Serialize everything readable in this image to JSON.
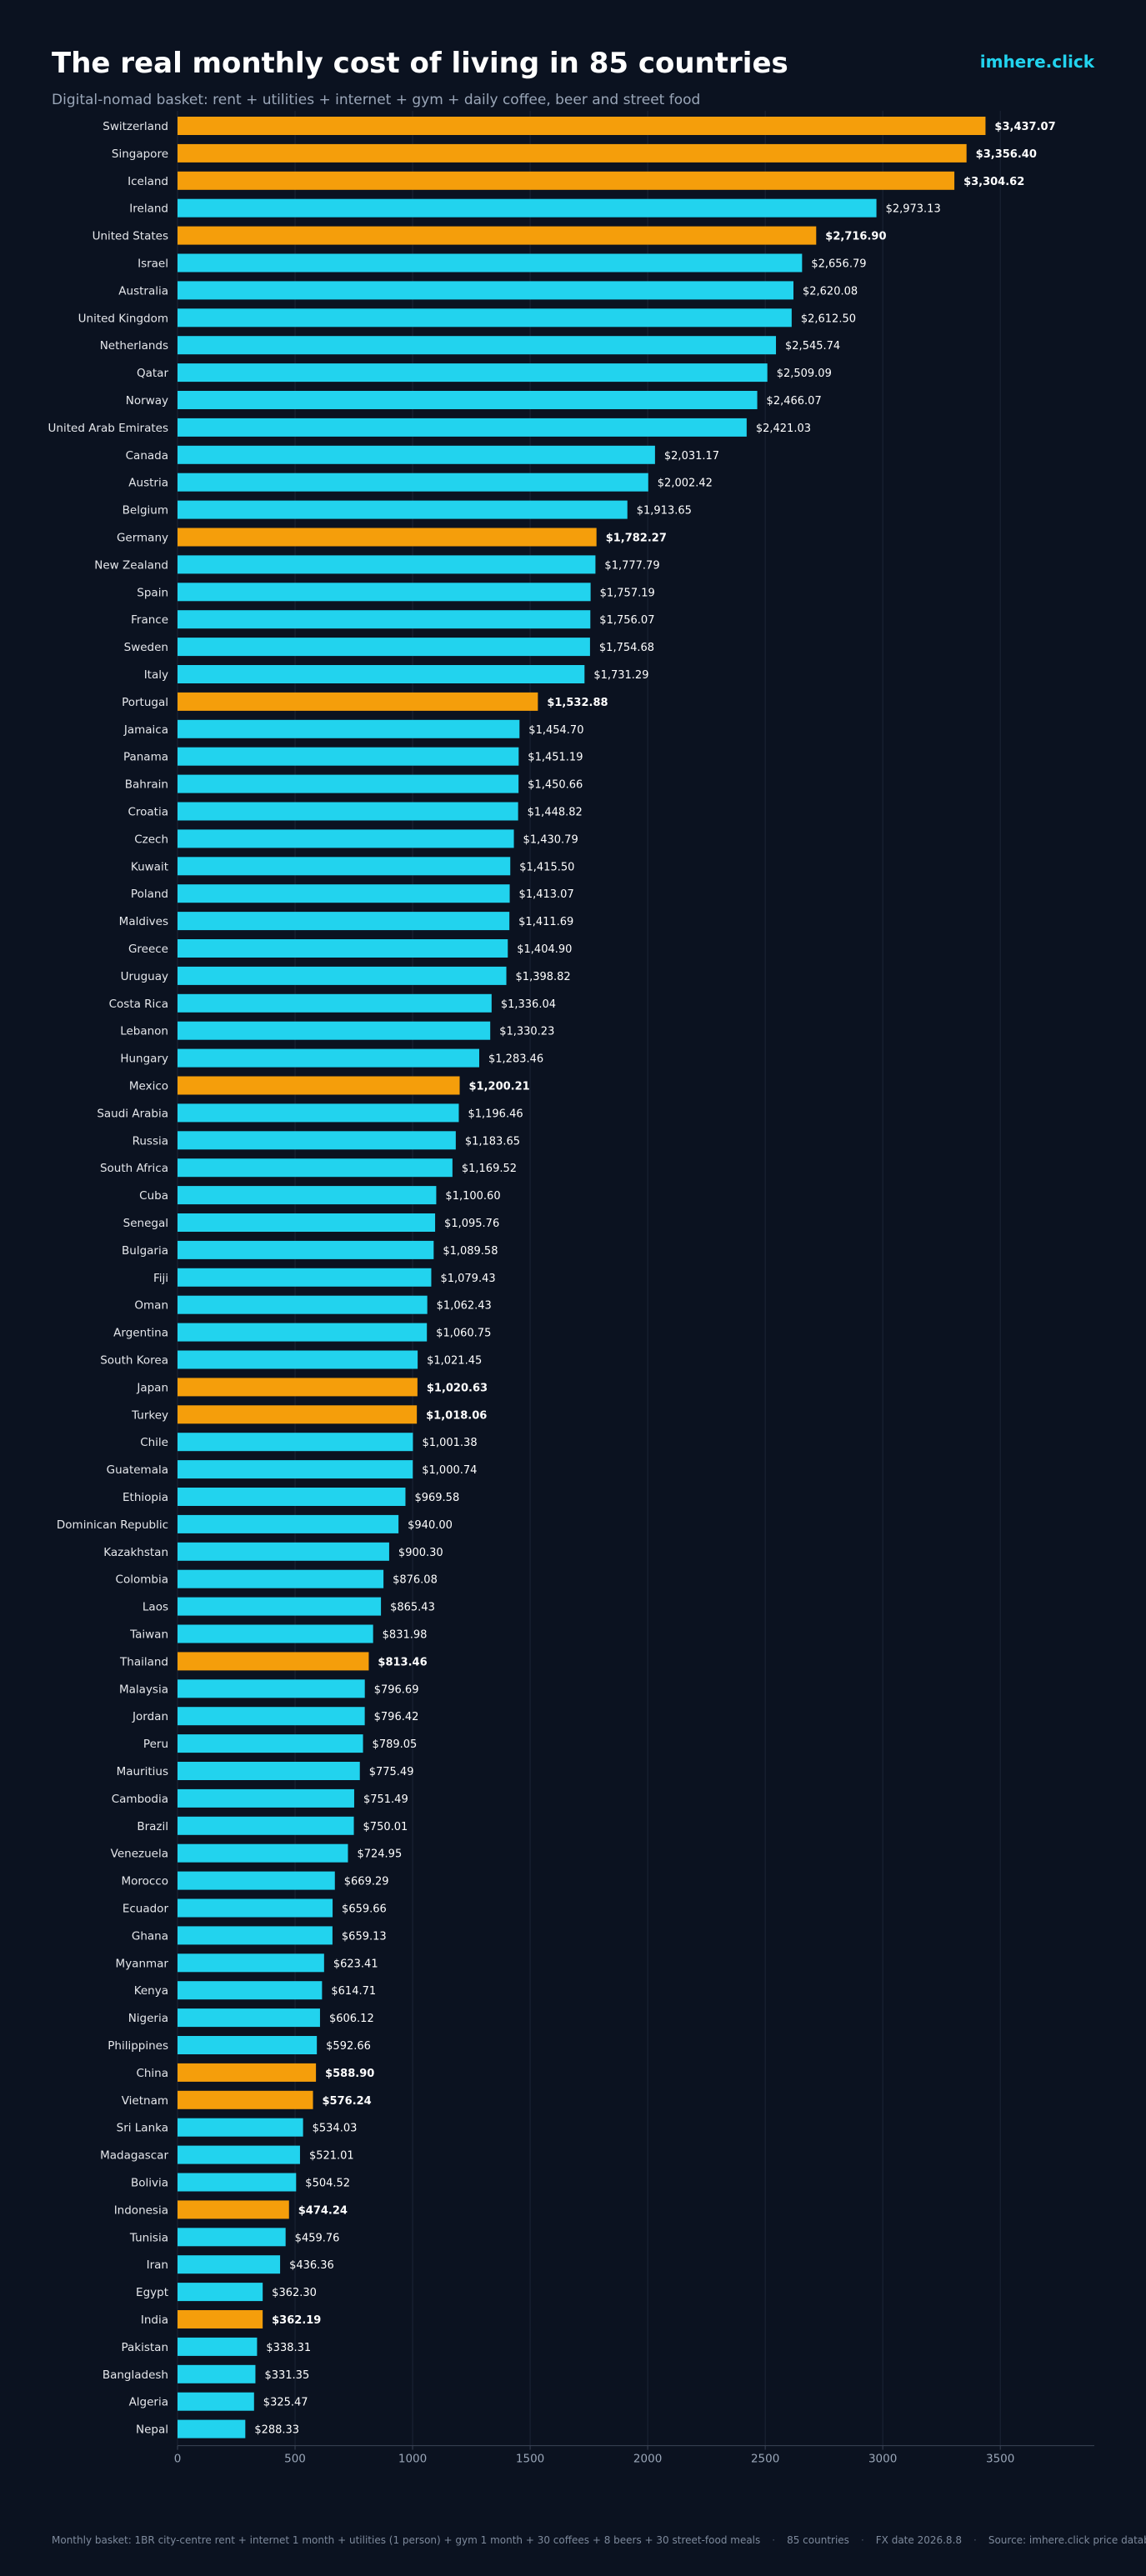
{
  "header": {
    "title": "The real monthly cost of living in 85 countries",
    "subtitle": "Digital-nomad basket: rent + utilities + internet + gym + daily coffee, beer and street food",
    "brand": "imhere.click"
  },
  "footer": {
    "basket": "Monthly basket: 1BR city-centre rent + internet 1 month + utilities (1 person) + gym 1 month + 30 coffees + 8 beers + 30 street-food meals",
    "count": "85 countries",
    "fx": "FX date 2026.8.8",
    "source": "Source: imhere.click price database"
  },
  "colors": {
    "background": "#0b1220",
    "default_bar": "#22d3ee",
    "highlight_bar": "#f59e0b",
    "label_text": "#e5e7eb",
    "grid": "#1c2536",
    "axis": "#3b4456"
  },
  "chart_data": {
    "type": "bar",
    "orientation": "horizontal",
    "currency_prefix": "$",
    "xlim": [
      0,
      3900
    ],
    "xticks": [
      0,
      500,
      1000,
      1500,
      2000,
      2500,
      3000,
      3500
    ],
    "grid": "vertical",
    "categories": [
      "Switzerland",
      "Singapore",
      "Iceland",
      "Ireland",
      "United States",
      "Israel",
      "Australia",
      "United Kingdom",
      "Netherlands",
      "Qatar",
      "Norway",
      "United Arab Emirates",
      "Canada",
      "Austria",
      "Belgium",
      "Germany",
      "New Zealand",
      "Spain",
      "France",
      "Sweden",
      "Italy",
      "Portugal",
      "Jamaica",
      "Panama",
      "Bahrain",
      "Croatia",
      "Czech",
      "Kuwait",
      "Poland",
      "Maldives",
      "Greece",
      "Uruguay",
      "Costa Rica",
      "Lebanon",
      "Hungary",
      "Mexico",
      "Saudi Arabia",
      "Russia",
      "South Africa",
      "Cuba",
      "Senegal",
      "Bulgaria",
      "Fiji",
      "Oman",
      "Argentina",
      "South Korea",
      "Japan",
      "Turkey",
      "Chile",
      "Guatemala",
      "Ethiopia",
      "Dominican Republic",
      "Kazakhstan",
      "Colombia",
      "Laos",
      "Taiwan",
      "Thailand",
      "Malaysia",
      "Jordan",
      "Peru",
      "Mauritius",
      "Cambodia",
      "Brazil",
      "Venezuela",
      "Morocco",
      "Ecuador",
      "Ghana",
      "Myanmar",
      "Kenya",
      "Nigeria",
      "Philippines",
      "China",
      "Vietnam",
      "Sri Lanka",
      "Madagascar",
      "Bolivia",
      "Indonesia",
      "Tunisia",
      "Iran",
      "Egypt",
      "India",
      "Pakistan",
      "Bangladesh",
      "Algeria",
      "Nepal"
    ],
    "values": [
      3437.07,
      3356.4,
      3304.62,
      2973.13,
      2716.9,
      2656.79,
      2620.08,
      2612.5,
      2545.74,
      2509.09,
      2466.07,
      2421.03,
      2031.17,
      2002.42,
      1913.65,
      1782.27,
      1777.79,
      1757.19,
      1756.07,
      1754.68,
      1731.29,
      1532.88,
      1454.7,
      1451.19,
      1450.66,
      1448.82,
      1430.79,
      1415.5,
      1413.07,
      1411.69,
      1404.9,
      1398.82,
      1336.04,
      1330.23,
      1283.46,
      1200.21,
      1196.46,
      1183.65,
      1169.52,
      1100.6,
      1095.76,
      1089.58,
      1079.43,
      1062.43,
      1060.75,
      1021.45,
      1020.63,
      1018.06,
      1001.38,
      1000.74,
      969.58,
      940.0,
      900.3,
      876.08,
      865.43,
      831.98,
      813.46,
      796.69,
      796.42,
      789.05,
      775.49,
      751.49,
      750.01,
      724.95,
      669.29,
      659.66,
      659.13,
      623.41,
      614.71,
      606.12,
      592.66,
      588.9,
      576.24,
      534.03,
      521.01,
      504.52,
      474.24,
      459.76,
      436.36,
      362.3,
      362.19,
      338.31,
      331.35,
      325.47,
      288.33
    ],
    "highlighted": [
      "Switzerland",
      "Singapore",
      "Iceland",
      "United States",
      "Germany",
      "Portugal",
      "Mexico",
      "Japan",
      "Turkey",
      "Thailand",
      "China",
      "Vietnam",
      "Indonesia",
      "India"
    ]
  }
}
